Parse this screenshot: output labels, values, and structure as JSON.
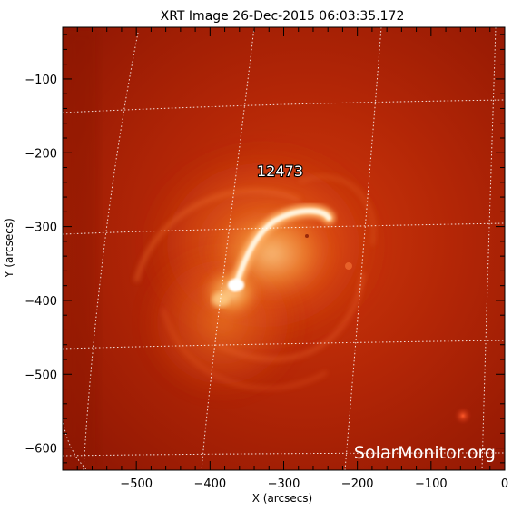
{
  "chart_data": {
    "type": "image",
    "title": "XRT Image 26-Dec-2015 06:03:35.172",
    "xlabel": "X (arcsecs)",
    "ylabel": "Y (arcsecs)",
    "xlim": [
      -600,
      0
    ],
    "ylim": [
      -630,
      -30
    ],
    "x_ticks": [
      -500,
      -400,
      -300,
      -200,
      -100,
      0
    ],
    "x_tick_labels": [
      "−500",
      "−400",
      "−300",
      "−200",
      "−100",
      "0"
    ],
    "y_ticks": [
      -100,
      -200,
      -300,
      -400,
      -500,
      -600
    ],
    "y_tick_labels": [
      "−100",
      "−200",
      "−300",
      "−400",
      "−500",
      "−600"
    ],
    "colormap": "red-orange-white (Hinode XRT)",
    "heliographic_grid": true,
    "grid_color": "#ffffff",
    "annotations": [
      {
        "text": "12473",
        "x": -300,
        "y": -225
      }
    ],
    "watermark": "SolarMonitor.org"
  }
}
